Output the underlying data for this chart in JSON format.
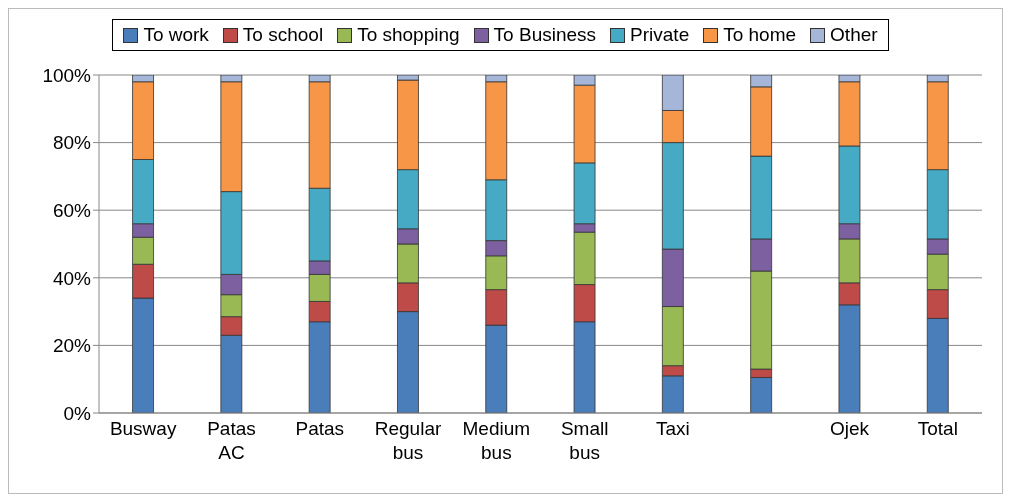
{
  "chart_data": {
    "type": "bar",
    "stacked": true,
    "categories": [
      "Busway",
      "Patas AC",
      "Patas",
      "Regular bus",
      "Medium bus",
      "Small bus",
      "Taxi",
      null,
      "Ojek",
      "Total"
    ],
    "series": [
      {
        "name": "To work",
        "color": "#4a7ebb",
        "values": [
          34,
          23,
          27,
          30,
          26,
          27,
          11,
          10.5,
          32,
          28
        ]
      },
      {
        "name": "To school",
        "color": "#be4b48",
        "values": [
          10,
          5.5,
          6,
          8.5,
          10.5,
          11,
          3,
          2.5,
          6.5,
          8.5
        ]
      },
      {
        "name": "To shopping",
        "color": "#98b954",
        "values": [
          8,
          6.5,
          8,
          11.5,
          10,
          15.5,
          17.5,
          29,
          13,
          10.5
        ]
      },
      {
        "name": "To Business",
        "color": "#7d60a0",
        "values": [
          4,
          6,
          4,
          4.5,
          4.5,
          2.5,
          17,
          9.5,
          4.5,
          4.5
        ]
      },
      {
        "name": "Private",
        "color": "#46aac5",
        "values": [
          19,
          24.5,
          21.5,
          17.5,
          18,
          18,
          31.5,
          24.5,
          23,
          20.5
        ]
      },
      {
        "name": "To home",
        "color": "#f79646",
        "values": [
          23,
          32.5,
          31.5,
          26.5,
          29,
          23,
          9.5,
          20.5,
          19,
          26
        ]
      },
      {
        "name": "Other",
        "color": "#a5b6d9",
        "values": [
          2,
          2,
          2,
          1.5,
          2,
          3,
          10.5,
          3.5,
          2,
          2
        ]
      }
    ],
    "ylim": [
      0,
      100
    ],
    "yticks": [
      {
        "value": 0,
        "label": "0%"
      },
      {
        "value": 20,
        "label": "20%"
      },
      {
        "value": 40,
        "label": "40%"
      },
      {
        "value": 60,
        "label": "60%"
      },
      {
        "value": 80,
        "label": "80%"
      },
      {
        "value": 100,
        "label": "100%"
      }
    ],
    "grid": "y",
    "legend": "top"
  }
}
